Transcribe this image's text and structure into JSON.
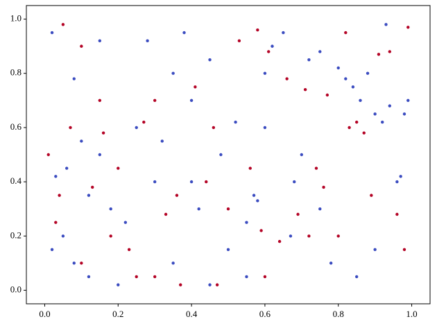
{
  "chart_data": {
    "type": "scatter",
    "xlim": [
      -0.05,
      1.05
    ],
    "ylim": [
      -0.05,
      1.05
    ],
    "xticks": [
      {
        "value": 0,
        "label": "0.0"
      },
      {
        "value": 0.2,
        "label": "0.2"
      },
      {
        "value": 0.4,
        "label": "0.4"
      },
      {
        "value": 0.6,
        "label": "0.6"
      },
      {
        "value": 0.8,
        "label": "0.8"
      },
      {
        "value": 1,
        "label": "1.0"
      }
    ],
    "yticks": [
      {
        "value": 0,
        "label": "0.0"
      },
      {
        "value": 0.2,
        "label": "0.2"
      },
      {
        "value": 0.4,
        "label": "0.4"
      },
      {
        "value": 0.6,
        "label": "0.6"
      },
      {
        "value": 0.8,
        "label": "0.8"
      },
      {
        "value": 1,
        "label": "1.0"
      }
    ],
    "grid": false,
    "series": [
      {
        "color": "#b40426",
        "x": [
          0.01,
          0.04,
          0.07,
          0.1,
          0.13,
          0.16,
          0.2,
          0.23,
          0.27,
          0.3,
          0.33,
          0.37,
          0.41,
          0.44,
          0.47,
          0.5,
          0.53,
          0.56,
          0.59,
          0.61,
          0.64,
          0.66,
          0.69,
          0.71,
          0.74,
          0.77,
          0.8,
          0.83,
          0.85,
          0.87,
          0.89,
          0.91,
          0.94,
          0.96,
          0.98,
          0.99,
          0.05,
          0.18,
          0.25,
          0.6,
          0.72,
          0.1,
          0.3,
          0.58,
          0.82,
          0.15,
          0.46,
          0.76,
          0.03,
          0.36
        ],
        "values": [
          0.5,
          0.35,
          0.6,
          0.9,
          0.38,
          0.58,
          0.45,
          0.15,
          0.62,
          0.05,
          0.28,
          0.02,
          0.75,
          0.4,
          0.02,
          0.3,
          0.92,
          0.45,
          0.22,
          0.88,
          0.18,
          0.78,
          0.28,
          0.74,
          0.45,
          0.72,
          0.2,
          0.6,
          0.62,
          0.58,
          0.35,
          0.87,
          0.88,
          0.28,
          0.15,
          0.97,
          0.98,
          0.2,
          0.05,
          0.05,
          0.2,
          0.1,
          0.7,
          0.96,
          0.95,
          0.7,
          0.6,
          0.38,
          0.25,
          0.35
        ]
      },
      {
        "color": "#3b4cc0",
        "x": [
          0.02,
          0.05,
          0.08,
          0.12,
          0.03,
          0.06,
          0.1,
          0.15,
          0.18,
          0.22,
          0.25,
          0.28,
          0.3,
          0.35,
          0.38,
          0.4,
          0.42,
          0.45,
          0.48,
          0.5,
          0.52,
          0.55,
          0.57,
          0.58,
          0.6,
          0.62,
          0.65,
          0.67,
          0.7,
          0.72,
          0.75,
          0.78,
          0.8,
          0.82,
          0.84,
          0.85,
          0.86,
          0.88,
          0.9,
          0.92,
          0.94,
          0.96,
          0.97,
          0.98,
          0.99,
          0.2,
          0.32,
          0.08,
          0.15,
          0.6,
          0.45,
          0.75,
          0.9,
          0.55,
          0.02,
          0.35,
          0.68,
          0.93,
          0.12,
          0.4
        ],
        "values": [
          0.15,
          0.2,
          0.1,
          0.05,
          0.42,
          0.45,
          0.55,
          0.5,
          0.3,
          0.25,
          0.6,
          0.92,
          0.4,
          0.1,
          0.95,
          0.7,
          0.3,
          0.85,
          0.5,
          0.15,
          0.62,
          0.05,
          0.35,
          0.33,
          0.8,
          0.9,
          0.95,
          0.2,
          0.5,
          0.85,
          0.88,
          0.1,
          0.82,
          0.78,
          0.75,
          0.05,
          0.7,
          0.8,
          0.65,
          0.62,
          0.68,
          0.4,
          0.42,
          0.65,
          0.7,
          0.02,
          0.55,
          0.78,
          0.92,
          0.6,
          0.02,
          0.3,
          0.15,
          0.25,
          0.95,
          0.8,
          0.4,
          0.98,
          0.35,
          0.4
        ]
      }
    ]
  }
}
